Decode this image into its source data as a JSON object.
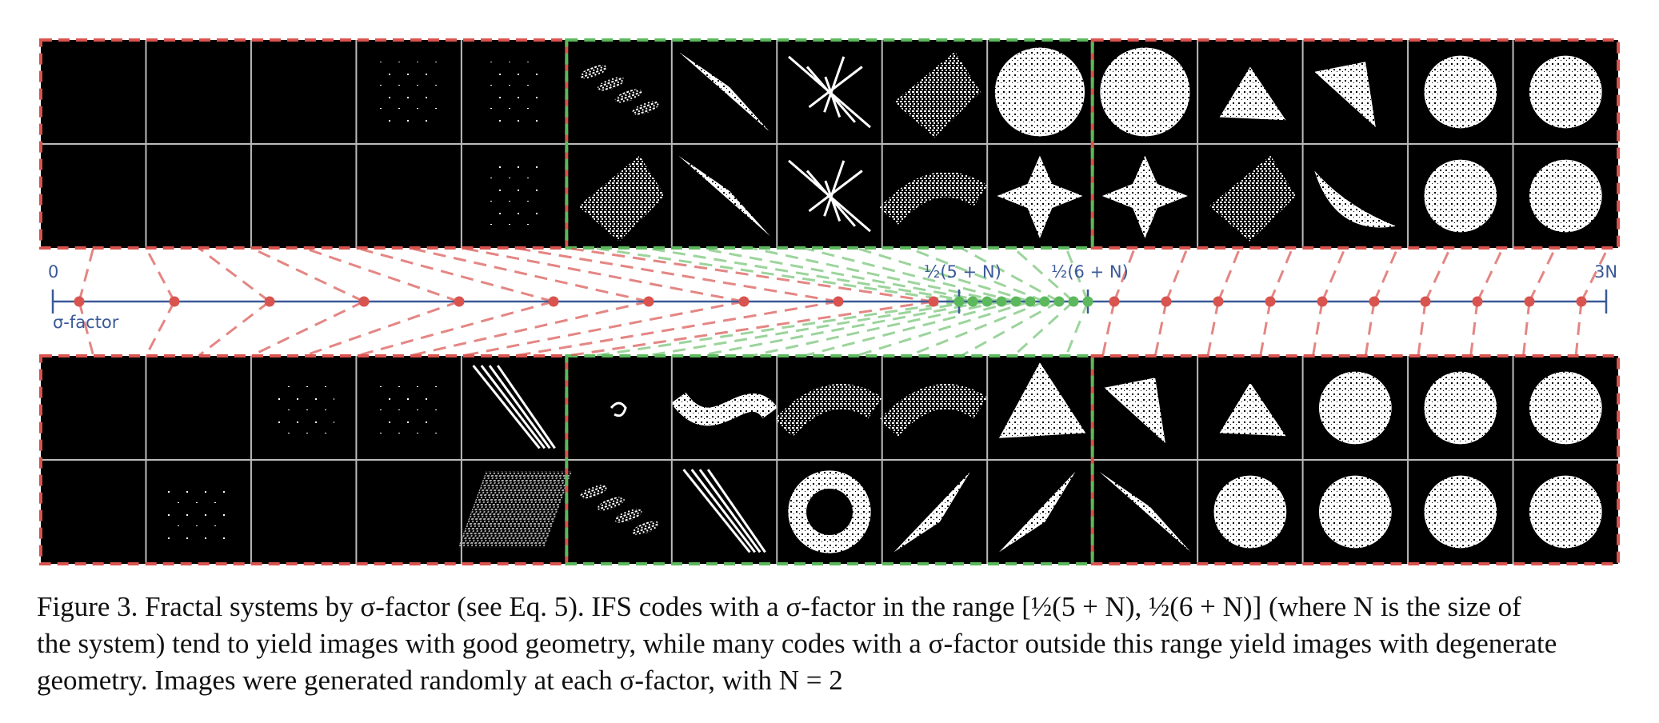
{
  "axis": {
    "label_start": "0",
    "label_end": "3N",
    "label_lower": "½(5 + N)",
    "label_upper": "½(6 + N)",
    "axis_name": "σ-factor"
  },
  "colors": {
    "axis": "#3b5998",
    "degenerate": "#d9534f",
    "good": "#5cb85c",
    "grid": "#bbbbbb",
    "panel": "#000000"
  },
  "panels": {
    "columns": 15,
    "rows_top": 2,
    "rows_bottom": 2,
    "good_columns": [
      5,
      6,
      7,
      8,
      9
    ],
    "top_rows": [
      [
        "empty",
        "empty",
        "empty",
        "dust",
        "dust",
        "leaves",
        "spike",
        "tangle",
        "fan",
        "blob",
        "blob",
        "triangle",
        "wedge",
        "disk",
        "disk"
      ],
      [
        "empty",
        "empty",
        "empty",
        "empty",
        "dust",
        "fan",
        "spike",
        "tangle",
        "branch",
        "star",
        "star",
        "fan",
        "crescent",
        "disk",
        "disk"
      ]
    ],
    "bottom_rows": [
      [
        "empty",
        "empty",
        "dust",
        "dust",
        "streaks",
        "curl",
        "spiral",
        "branch",
        "branch",
        "tree",
        "wedge",
        "triangle",
        "disk",
        "disk",
        "disk"
      ],
      [
        "empty",
        "dust",
        "empty",
        "empty",
        "dots",
        "leaves",
        "streaks",
        "ring",
        "fern",
        "fern",
        "spike",
        "disk",
        "disk",
        "disk",
        "disk"
      ]
    ]
  },
  "caption": {
    "line1": "Figure 3. Fractal systems by σ-factor (see Eq. 5). IFS codes with a σ-factor in the range [½(5 + N), ½(6 + N)] (where N is the size of",
    "line2": "the system) tend to yield images with good geometry, while many codes with a σ-factor outside this range yield images with degenerate",
    "line3": "geometry. Images were generated randomly at each σ-factor, with N = 2"
  }
}
